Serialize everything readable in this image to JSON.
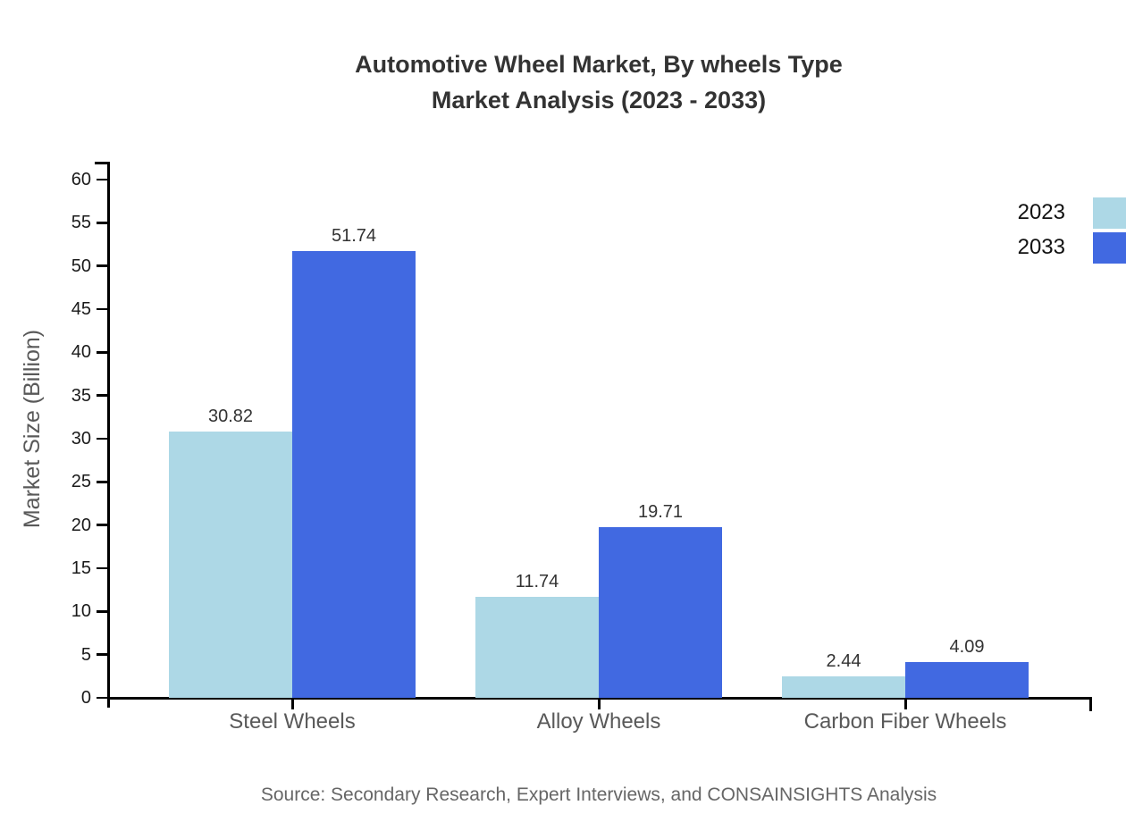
{
  "title": {
    "line1": "Automotive Wheel Market, By wheels Type",
    "line2": "Market Analysis (2023 - 2033)"
  },
  "source": "Source: Secondary Research, Expert Interviews, and CONSAINSIGHTS Analysis",
  "legend": [
    {
      "label": "2023",
      "color": "#add8e6"
    },
    {
      "label": "2033",
      "color": "#4169e1"
    }
  ],
  "colors": {
    "axis": "#000000",
    "series_2023": "#add8e6",
    "series_2033": "#4169e1",
    "title_text": "#333333",
    "tick_label_text": "#1a1a1a",
    "category_text": "#595959",
    "value_label_text": "#333333",
    "source_text": "#666666"
  },
  "chart_data": {
    "type": "bar",
    "title": "Automotive Wheel Market, By wheels Type Market Analysis (2023 - 2033)",
    "categories": [
      "Steel Wheels",
      "Alloy Wheels",
      "Carbon Fiber Wheels"
    ],
    "series": [
      {
        "name": "2023",
        "color": "#add8e6",
        "values": [
          30.82,
          11.74,
          2.44
        ]
      },
      {
        "name": "2033",
        "color": "#4169e1",
        "values": [
          51.74,
          19.71,
          4.09
        ]
      }
    ],
    "xlabel": "",
    "ylabel": "Market Size (Billion)",
    "ylim": [
      0,
      60
    ],
    "ytick_step": 5,
    "grid": false,
    "legend_position": "top-right",
    "value_labels": true
  }
}
